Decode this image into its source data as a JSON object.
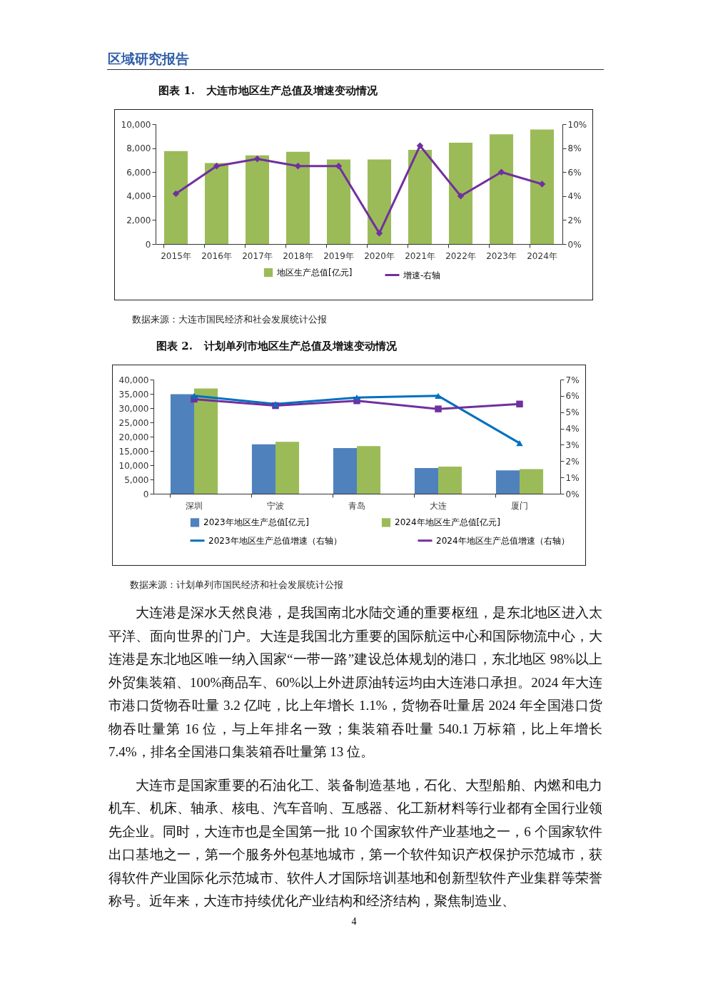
{
  "chart_data": [
    {
      "type": "bar",
      "title": "图表 1.   大连市地区生产总值及增速变动情况",
      "categories": [
        "2015年",
        "2016年",
        "2017年",
        "2018年",
        "2019年",
        "2020年",
        "2021年",
        "2022年",
        "2023年",
        "2024年"
      ],
      "series": [
        {
          "name": "地区生产总值[亿元]",
          "color": "#9bbb59",
          "values": [
            7750,
            6750,
            7400,
            7700,
            7050,
            7050,
            7850,
            8450,
            9150,
            9550
          ]
        },
        {
          "name": "增速-右轴",
          "type": "line",
          "axis": "y2",
          "color": "#7030a0",
          "marker": "diamond",
          "values": [
            4.2,
            6.5,
            7.1,
            6.5,
            6.5,
            0.9,
            8.2,
            4.0,
            6.0,
            5.0
          ]
        }
      ],
      "ylim": [
        0,
        10000
      ],
      "yticks": [
        0,
        {
          "value": 2000,
          "label": "2,000"
        },
        {
          "value": 4000,
          "label": "4,000"
        },
        {
          "value": 6000,
          "label": "6,000"
        },
        {
          "value": 8000,
          "label": "8,000"
        },
        {
          "value": 10000,
          "label": "10,000"
        }
      ],
      "y2lim": [
        0,
        10
      ],
      "y2ticks": [
        {
          "value": 0,
          "label": "0%"
        },
        {
          "value": 2,
          "label": "2%"
        },
        {
          "value": 4,
          "label": "4%"
        },
        {
          "value": 6,
          "label": "6%"
        },
        {
          "value": 8,
          "label": "8%"
        },
        {
          "value": 10,
          "label": "10%"
        }
      ],
      "legend": "bottom",
      "annotations": [
        "区域研究报告",
        "数据来源：大连市国民经济和社会发展统计公报"
      ]
    },
    {
      "type": "bar",
      "title": "图表 2.   计划单列市地区生产总值及增速变动情况",
      "categories": [
        "深圳",
        "宁波",
        "青岛",
        "大连",
        "厦门"
      ],
      "series": [
        {
          "name": "2023年地区生产总值[亿元]",
          "color": "#4f81bd",
          "values": [
            34900,
            17300,
            16000,
            9000,
            8200
          ]
        },
        {
          "name": "2024年地区生产总值[亿元]",
          "color": "#9bbb59",
          "values": [
            36900,
            18200,
            16700,
            9500,
            8600
          ]
        },
        {
          "name": "2023年地区生产总值增速（右轴）",
          "type": "line",
          "axis": "y2",
          "color": "#0070c0",
          "marker": "triangle",
          "values": [
            6.0,
            5.5,
            5.9,
            6.0,
            3.1
          ]
        },
        {
          "name": "2024年地区生产总值增速（右轴）",
          "type": "line",
          "axis": "y2",
          "color": "#7030a0",
          "marker": "square",
          "values": [
            5.8,
            5.4,
            5.7,
            5.2,
            5.5
          ]
        }
      ],
      "ylim": [
        0,
        40000
      ],
      "yticks": [
        0,
        {
          "value": 5000,
          "label": "5,000"
        },
        {
          "value": 10000,
          "label": "10,000"
        },
        {
          "value": 15000,
          "label": "15,000"
        },
        {
          "value": 20000,
          "label": "20,000"
        },
        {
          "value": 25000,
          "label": "25,000"
        },
        {
          "value": 30000,
          "label": "30,000"
        },
        {
          "value": 35000,
          "label": "35,000"
        },
        {
          "value": 40000,
          "label": "40,000"
        }
      ],
      "y2lim": [
        0,
        7
      ],
      "y2ticks": [
        {
          "value": 0,
          "label": "0%"
        },
        {
          "value": 1,
          "label": "1%"
        },
        {
          "value": 2,
          "label": "2%"
        },
        {
          "value": 3,
          "label": "3%"
        },
        {
          "value": 4,
          "label": "4%"
        },
        {
          "value": 5,
          "label": "5%"
        },
        {
          "value": 6,
          "label": "6%"
        },
        {
          "value": 7,
          "label": "7%"
        }
      ],
      "legend": "bottom",
      "annotations": [
        "数据来源：计划单列市国民经济和社会发展统计公报",
        "大连港是深水天然良港，是我国南北水陆交通的重要枢纽，是东北地区进入太平洋、面向世界的门户。大连是我国北方重要的国际航运中心和国际物流中心，大连港是东北地区唯一纳入国家“一带一路”建设总体规划的港口，东北地区 98%以上外贸集装箱、100%商品车、60%以上外进原油转运均由大连港口承担。2024 年大连市港口货物吞吐量 3.2 亿吨，比上年增长 1.1%，货物吞吐量居 2024 年全国港口货物吞吐量第 16 位，与上年排名一致；集装箱吞吐量 540.1 万标箱，比上年增长 7.4%，排名全国港口集装箱吞吐量第 13 位。",
        "大连市是国家重要的石油化工、装备制造基地，石化、大型船舶、内燃和电力机车、机床、轴承、核电、汽车音响、互感器、化工新材料等行业都有全国行业领先企业。同时，大连市也是全国第一批 10 个国家软件产业基地之一，6 个国家软件出口基地之一，第一个服务外包基地城市，第一个软件知识产权保护示范城市，获得软件产业国际化示范城市、软件人才国际培训基地和创新型软件产业集群等荣誉称号。近年来，大连市持续优化产业结构和经济结构，聚焦制造业、",
        "4"
      ]
    }
  ]
}
